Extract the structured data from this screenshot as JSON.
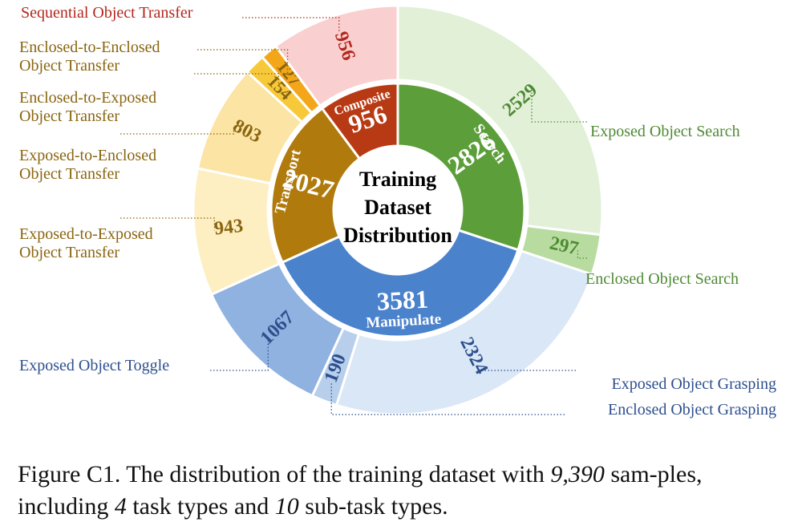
{
  "chart_data": {
    "type": "pie",
    "style": "sunburst",
    "center_label": [
      "Training",
      "Dataset",
      "Distribution"
    ],
    "categories": [
      {
        "name": "Search",
        "total": 2826,
        "color": "#5c9e3a",
        "text_color": "#ffffff",
        "children": [
          {
            "name": "Exposed Object Search",
            "value": 2529,
            "color": "#e2f0d8",
            "label_color": "#4e8a33"
          },
          {
            "name": "Enclosed Object Search",
            "value": 297,
            "color": "#b8dca0",
            "label_color": "#4e8a33"
          }
        ]
      },
      {
        "name": "Manipulate",
        "total": 3581,
        "color": "#4a82cc",
        "text_color": "#ffffff",
        "children": [
          {
            "name": "Exposed Object Grasping",
            "value": 2324,
            "color": "#dae7f6",
            "label_color": "#2d4f8e"
          },
          {
            "name": "Enclosed Object Grasping",
            "value": 190,
            "color": "#b8cfec",
            "label_color": "#2d4f8e"
          },
          {
            "name": "Exposed Object Toggle",
            "value": 1067,
            "color": "#8fb2e0",
            "label_color": "#2d4f8e"
          }
        ]
      },
      {
        "name": "Transport",
        "total": 2027,
        "color": "#b07a0c",
        "text_color": "#ffffff",
        "children": [
          {
            "name": "Exposed-to-Exposed\nObject Transfer",
            "value": 943,
            "color": "#fdefc2",
            "label_color": "#8a6510"
          },
          {
            "name": "Exposed-to-Enclosed\nObject Transfer",
            "value": 803,
            "color": "#fbe4a4",
            "label_color": "#8a6510"
          },
          {
            "name": "Enclosed-to-Exposed\nObject Transfer",
            "value": 154,
            "color": "#f7c93a",
            "label_color": "#8a6510"
          },
          {
            "name": "Enclosed-to-Enclosed\nObject Transfer",
            "value": 127,
            "color": "#f3a61a",
            "label_color": "#8a6510"
          }
        ]
      },
      {
        "name": "Composite",
        "total": 956,
        "color": "#b83a14",
        "text_color": "#ffffff",
        "children": [
          {
            "name": "Sequential Object Transfer",
            "value": 956,
            "color": "#f9cfcf",
            "label_color": "#b3271e"
          }
        ]
      }
    ]
  },
  "caption": {
    "prefix": "Figure C1. The distribution of the training dataset with ",
    "samples": "9,390",
    "middle1": " sam-ples, including ",
    "task_types": "4",
    "middle2": " task types and ",
    "subtask_types": "10",
    "suffix": " sub-task types."
  }
}
